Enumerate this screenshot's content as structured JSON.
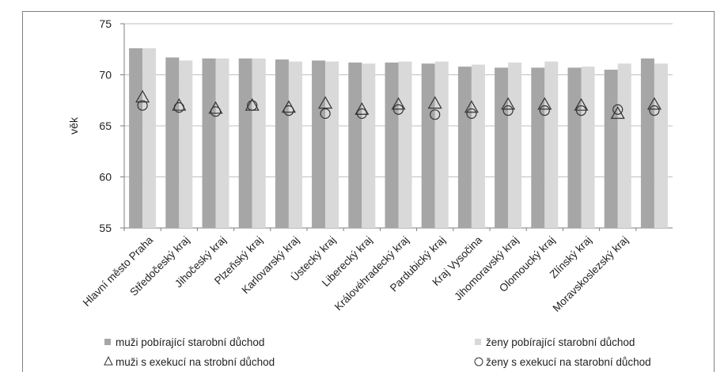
{
  "chart_data": {
    "type": "bar",
    "ylabel": "věk",
    "ylim": [
      55,
      75
    ],
    "yticks": [
      55,
      60,
      65,
      70,
      75
    ],
    "grid": true,
    "legend_position": "bottom",
    "categories": [
      "Hlavní město Praha",
      "Středočeský kraj",
      "Jihočeský kraj",
      "Plzeňský kraj",
      "Karlovarský kraj",
      "Ústecký kraj",
      "Liberecký kraj",
      "Královéhradecký kraj",
      "Pardubický kraj",
      "Kraj Vysočina",
      "Jihomoravský kraj",
      "Olomoucký kraj",
      "Zlínský kraj",
      "Moravskoslezský kraj",
      ""
    ],
    "series": [
      {
        "name": "muži pobírající starobní důchod",
        "kind": "bar",
        "color": "#a6a6a6",
        "values": [
          72.6,
          71.7,
          71.6,
          71.6,
          71.5,
          71.4,
          71.2,
          71.2,
          71.1,
          70.8,
          70.7,
          70.7,
          70.7,
          70.5,
          71.6
        ]
      },
      {
        "name": "ženy pobírající starobní důchod",
        "kind": "bar",
        "color": "#d9d9d9",
        "values": [
          72.6,
          71.4,
          71.6,
          71.6,
          71.3,
          71.3,
          71.1,
          71.3,
          71.3,
          71.0,
          71.2,
          71.3,
          70.8,
          71.1,
          71.1
        ]
      },
      {
        "name": "muži s exekucí na strobní důchod",
        "kind": "triangle",
        "values": [
          67.8,
          67.0,
          66.7,
          67.0,
          66.8,
          67.2,
          66.6,
          67.1,
          67.2,
          66.8,
          67.1,
          67.1,
          67.0,
          66.2,
          67.1
        ]
      },
      {
        "name": "ženy s exekucí na starobní důchod",
        "kind": "circle",
        "values": [
          67.0,
          66.8,
          66.4,
          67.0,
          66.5,
          66.2,
          66.2,
          66.6,
          66.1,
          66.2,
          66.5,
          66.5,
          66.5,
          66.6,
          66.5
        ]
      }
    ]
  }
}
